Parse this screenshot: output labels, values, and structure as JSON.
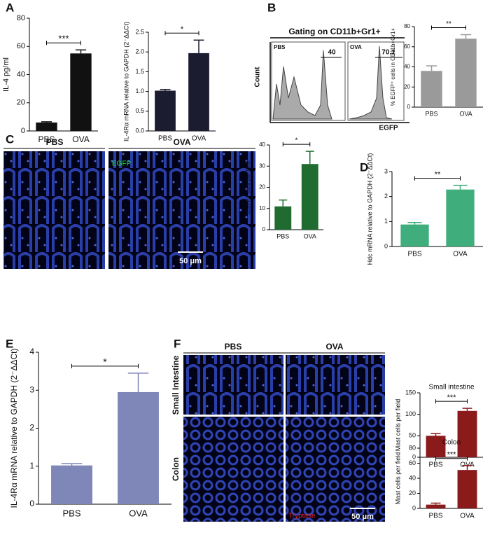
{
  "panel_labels": [
    "A",
    "B",
    "C",
    "D",
    "E",
    "F"
  ],
  "flow": {
    "title": "Gating on CD11b+Gr1+",
    "y_label": "Count",
    "x_label": "EGFP",
    "plots": [
      {
        "label": "PBS",
        "gate": "40"
      },
      {
        "label": "OVA",
        "gate": "70.1"
      }
    ]
  },
  "panel_c_images": {
    "columns": [
      "PBS",
      "OVA"
    ],
    "stain": "EGFP",
    "scale": "50 μm"
  },
  "panel_f_images": {
    "columns": [
      "PBS",
      "OVA"
    ],
    "rows": [
      "Small Intestine",
      "Colon"
    ],
    "stain": "Tryptase",
    "scale": "50 μm"
  },
  "chart_data": [
    {
      "type": "bar",
      "y_label": "IL-4 pg/ml",
      "categories": [
        "PBS",
        "OVA"
      ],
      "values": [
        6,
        55
      ],
      "errors": [
        0.5,
        2.5
      ],
      "color": "#111111",
      "ylim": [
        0,
        80
      ],
      "yticks": [
        0,
        20,
        40,
        60,
        80
      ],
      "annotation": "***"
    },
    {
      "type": "bar",
      "y_label": "IL-4Rα mRNA relative to GAPDH (2⁻ΔΔCt)",
      "categories": [
        "PBS",
        "OVA"
      ],
      "values": [
        1.02,
        1.97
      ],
      "errors": [
        0.03,
        0.33
      ],
      "color": "#1c1c30",
      "ylim": [
        0,
        2.5
      ],
      "yticks": [
        {
          "value": 0,
          "label": "0.0"
        },
        0.5,
        {
          "value": 1,
          "label": "1.0"
        },
        1.5,
        {
          "value": 2,
          "label": "2.0"
        },
        2.5
      ],
      "annotation": "*"
    },
    {
      "type": "bar",
      "y_label": "% EGFP⁺ cells in CD11b+Gr1+",
      "categories": [
        "PBS",
        "OVA"
      ],
      "values": [
        36,
        68
      ],
      "errors": [
        5,
        4
      ],
      "color": "#9a9a9a",
      "ylim": [
        0,
        80
      ],
      "yticks": [
        0,
        20,
        40,
        60,
        80
      ],
      "annotation": "**"
    },
    {
      "type": "bar",
      "y_label": "EGFP+ cells per field",
      "categories": [
        "PBS",
        "OVA"
      ],
      "values": [
        11,
        31
      ],
      "errors": [
        3,
        6
      ],
      "color": "#1f6b30",
      "ylim": [
        0,
        40
      ],
      "yticks": [
        0,
        10,
        20,
        30,
        40
      ],
      "annotation": "*"
    },
    {
      "type": "bar",
      "y_label": "Hdc mRNA relative to GAPDH (2⁻ΔΔCt)",
      "categories": [
        "PBS",
        "OVA"
      ],
      "values": [
        0.88,
        2.28
      ],
      "errors": [
        0.08,
        0.17
      ],
      "color": "#3fae7c",
      "ylim": [
        0,
        3
      ],
      "yticks": [
        0,
        1,
        2,
        3
      ],
      "annotation": "**"
    },
    {
      "type": "bar",
      "y_label": "IL-4Rα mRNA relative to GAPDH (2⁻ΔΔCt)",
      "categories": [
        "PBS",
        "OVA"
      ],
      "values": [
        1.02,
        2.95
      ],
      "errors": [
        0.05,
        0.5
      ],
      "color": "#7f87b8",
      "ylim": [
        0,
        4
      ],
      "yticks": [
        0,
        1,
        2,
        3,
        4
      ],
      "annotation": "*"
    },
    {
      "type": "bar",
      "title": "Small intestine",
      "y_label": "Mast cells per field",
      "categories": [
        "PBS",
        "OVA"
      ],
      "values": [
        50,
        108
      ],
      "errors": [
        5,
        6
      ],
      "color": "#8b1a1a",
      "ylim": [
        0,
        150
      ],
      "yticks": [
        0,
        50,
        100,
        150
      ],
      "annotation": "***"
    },
    {
      "type": "bar",
      "title": "Colon",
      "y_label": "Mast cells per field",
      "categories": [
        "PBS",
        "OVA"
      ],
      "values": [
        5,
        51
      ],
      "errors": [
        2,
        6
      ],
      "color": "#8b1a1a",
      "ylim": [
        0,
        80
      ],
      "yticks": [
        0,
        20,
        40,
        60,
        80
      ],
      "annotation": "***"
    }
  ]
}
